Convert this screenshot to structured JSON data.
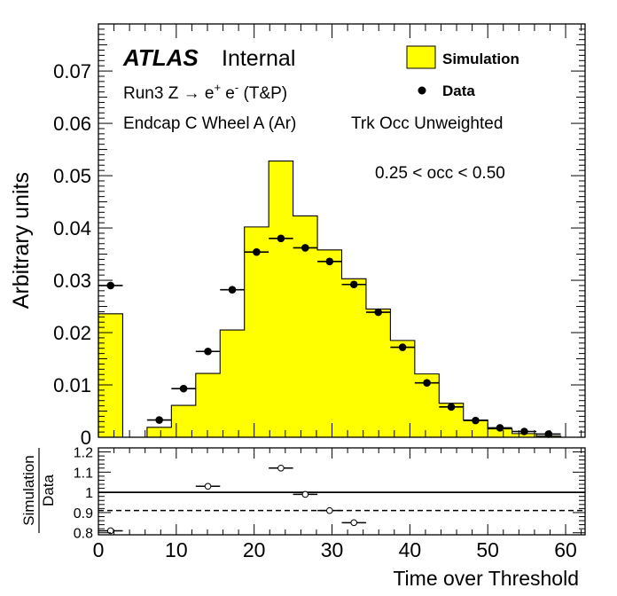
{
  "chart_data": {
    "type": "histogram",
    "xlabel": "Time over Threshold",
    "ylabel": "Arbitrary units",
    "xlim": [
      0,
      62.5
    ],
    "ylim": [
      0,
      0.079
    ],
    "x_ticks": [
      "0",
      "10",
      "20",
      "30",
      "40",
      "50",
      "60"
    ],
    "y_ticks": [
      "0",
      "0.01",
      "0.02",
      "0.03",
      "0.04",
      "0.05",
      "0.06",
      "0.07"
    ],
    "annotations": {
      "atlas": "ATLAS",
      "internal": "Internal",
      "process_prefix": "Run3 Z → e",
      "process_mid": " e",
      "process_suffix": " (T&P)",
      "plus_sign": "+",
      "minus_sign": "-",
      "region": "Endcap C Wheel A (Ar)",
      "weighting": "Trk Occ Unweighted",
      "occupancy": "0.25 < occ < 0.50"
    },
    "legend": {
      "position": "top-right",
      "simulation": "Simulation",
      "data": "Data"
    },
    "simulation": {
      "bin_edges": [
        0,
        3.125,
        6.25,
        9.375,
        12.5,
        15.625,
        18.75,
        21.875,
        25,
        28.125,
        31.25,
        34.375,
        37.5,
        40.625,
        43.75,
        46.875,
        50,
        53.125,
        56.25,
        59.375,
        62.5
      ],
      "values": [
        0.0236,
        0,
        0.0019,
        0.0061,
        0.0122,
        0.0205,
        0.0402,
        0.0528,
        0.0423,
        0.0358,
        0.0303,
        0.0245,
        0.0185,
        0.0121,
        0.0065,
        0.0033,
        0.0016,
        0.0007,
        0.0002,
        0,
        0
      ]
    },
    "data": {
      "x": [
        1.5625,
        7.8125,
        10.9375,
        14.0625,
        17.1875,
        20.3125,
        23.4375,
        26.5625,
        29.6875,
        32.8125,
        35.9375,
        39.0625,
        42.1875,
        45.3125,
        48.4375,
        51.5625,
        54.6875,
        57.8125
      ],
      "y": [
        0.029,
        0.0033,
        0.0093,
        0.0164,
        0.0282,
        0.0354,
        0.038,
        0.0362,
        0.0336,
        0.0292,
        0.0239,
        0.0172,
        0.0104,
        0.0058,
        0.0032,
        0.0018,
        0.0011,
        0.0006
      ]
    },
    "ratio": {
      "ylabel_numerator": "Simulation",
      "ylabel_denominator": "Data",
      "ylim": [
        0.79,
        1.22
      ],
      "y_ticks": [
        "0.8",
        "0.9",
        "1",
        "1.1",
        "1.2"
      ],
      "reference_line": 1,
      "dashed_line": 0.91,
      "x": [
        1.5625,
        14.0625,
        23.4375,
        26.5625,
        29.6875,
        32.8125
      ],
      "y": [
        0.81,
        1.03,
        1.12,
        0.99,
        0.91,
        0.85
      ]
    }
  }
}
